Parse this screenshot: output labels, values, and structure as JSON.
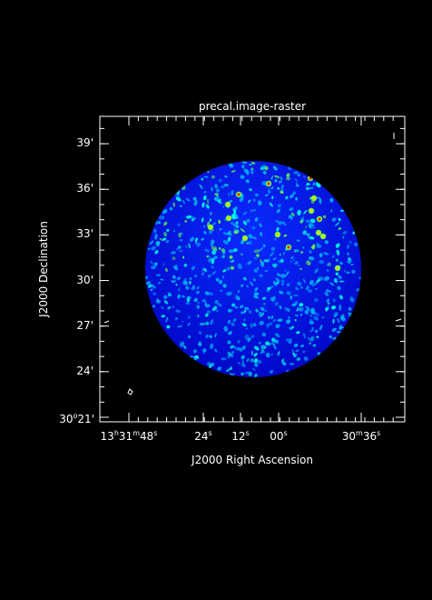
{
  "chart_data": {
    "type": "heatmap",
    "title": "precal.image-raster",
    "xlabel": "J2000 Right Ascension",
    "ylabel": "J2000 Declination",
    "x_ticks": [
      {
        "h": "13",
        "m": "31",
        "s": "48",
        "text": "13h31m48s"
      },
      {
        "s": "24",
        "text": "24s"
      },
      {
        "s": "12",
        "text": "12s"
      },
      {
        "s": "00",
        "text": "00s"
      },
      {
        "m": "30",
        "s": "36",
        "text": "30m36s"
      }
    ],
    "y_ticks": [
      {
        "value": 39,
        "text": "39'"
      },
      {
        "value": 36,
        "text": "36'"
      },
      {
        "value": 33,
        "text": "33'"
      },
      {
        "value": 30,
        "text": "30'"
      },
      {
        "value": 27,
        "text": "27'"
      },
      {
        "value": 24,
        "text": "24'"
      },
      {
        "d": "30",
        "m": "21",
        "text": "30°21'"
      }
    ],
    "ylim_arcmin": [
      20.7,
      40.8
    ],
    "colormap": "jet",
    "colors": {
      "background": "#000000",
      "frame": "#ffffff",
      "field_base": "#0a2bff",
      "field_dark": "#0008c8",
      "mid": "#00b4ff",
      "cyan": "#00ffe0",
      "green": "#66ff44",
      "yellow": "#ffd400",
      "red": "#ff2000"
    }
  }
}
